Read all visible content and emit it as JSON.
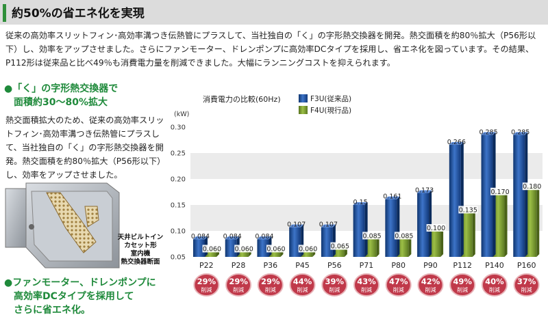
{
  "header": {
    "title": "約50%の省エネ化を実現"
  },
  "intro": "従来の高効率スリットフィン･高効率溝つき伝熱管にプラスして、当社独自の「く」の字形熱交換器を開発。熱交面積を約80％拡大（P56形以下）し、効率をアップさせました。さらにファンモーター、ドレンポンプに高効率DCタイプを採用し、省エネ化を図っています。その結果、P112形は従来品と比べ49％も消費電力量を削減できました。大幅にランニングコストを抑えられます。",
  "section1": {
    "heading_line1": "●「く」の字形熱交換器で",
    "heading_line2": "面積約30〜80%拡大",
    "body": "熱交面積拡大のため、従来の高効率スリットフィン･高効率溝つき伝熱管にプラスして、当社独自の「く」の字形熱交換器を開発。熱交面積を約80％拡大（P56形以下）し、効率をアップさせました。",
    "image_caption": [
      "天井ビルトイン",
      "カセット形",
      "室内機",
      "熱交換器断面"
    ]
  },
  "section2": {
    "heading_line1": "●ファンモーター、ドレンポンプに",
    "heading_line2": "高効率DCタイプを採用して",
    "heading_line3": "さらに省エネ化。"
  },
  "colors": {
    "accent_green": "#1f8a3b",
    "f3u_blue": "#1f4f9a",
    "f4u_green": "#7a9a2e",
    "badge_red": "#c0394a"
  },
  "chart_data": {
    "type": "bar",
    "title": "消費電力の比較(60Hz)",
    "ylabel": "(kW)",
    "ylim": [
      0.05,
      0.3
    ],
    "yticks": [
      "0.05",
      "0.10",
      "0.15",
      "0.20",
      "0.25",
      "0.30"
    ],
    "categories": [
      "P22",
      "P28",
      "P36",
      "P45",
      "P56",
      "P71",
      "P80",
      "P90",
      "P112",
      "P140",
      "P160"
    ],
    "series": [
      {
        "name": "F3U(従来品)",
        "values": [
          0.084,
          0.084,
          0.084,
          0.107,
          0.107,
          0.15,
          0.161,
          0.173,
          0.266,
          0.285,
          0.285
        ],
        "labels": [
          "0.084",
          "0.084",
          "0.084",
          "0.107",
          "0.107",
          "0.15",
          "0.161",
          "0.173",
          "0.266",
          "0.285",
          "0.285"
        ]
      },
      {
        "name": "F4U(現行品)",
        "values": [
          0.06,
          0.06,
          0.06,
          0.06,
          0.065,
          0.085,
          0.085,
          0.1,
          0.135,
          0.17,
          0.18
        ],
        "labels": [
          "0.060",
          "0.060",
          "0.060",
          "0.060",
          "0.065",
          "0.085",
          "0.085",
          "0.100",
          "0.135",
          "0.170",
          "0.180"
        ]
      }
    ],
    "reductions": [
      "29%",
      "29%",
      "29%",
      "44%",
      "39%",
      "43%",
      "47%",
      "42%",
      "49%",
      "40%",
      "37%"
    ],
    "reduction_suffix": "削減",
    "grid": "alternating bands"
  }
}
